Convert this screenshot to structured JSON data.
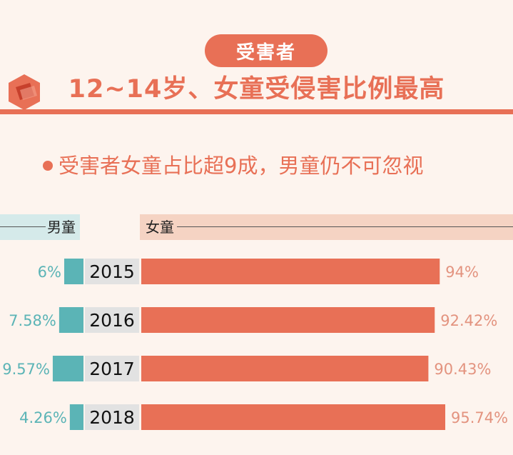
{
  "header": {
    "badge": "受害者",
    "headline": "12~14岁、女童受侵害比例最高"
  },
  "subtitle": "受害者女童占比超9成，男童仍不可忽视",
  "legend": {
    "boys": "男童",
    "girls": "女童"
  },
  "colors": {
    "accent": "#e87056",
    "boys": "#5bb4b6",
    "girls": "#e87056",
    "year_box": "#e2e2e2",
    "boys_label": "#5bb4b6",
    "girls_label": "#e3937f"
  },
  "chart_data": {
    "type": "bar",
    "orientation": "diverging-horizontal",
    "categories": [
      "2015",
      "2016",
      "2017",
      "2018"
    ],
    "series": [
      {
        "name": "男童",
        "values": [
          6,
          7.58,
          9.57,
          4.26
        ],
        "labels": [
          "6%",
          "7.58%",
          "9.57%",
          "4.26%"
        ]
      },
      {
        "name": "女童",
        "values": [
          94,
          92.42,
          90.43,
          95.74
        ],
        "labels": [
          "94%",
          "92.42%",
          "90.43%",
          "95.74%"
        ]
      }
    ],
    "xlim": [
      0,
      100
    ]
  }
}
